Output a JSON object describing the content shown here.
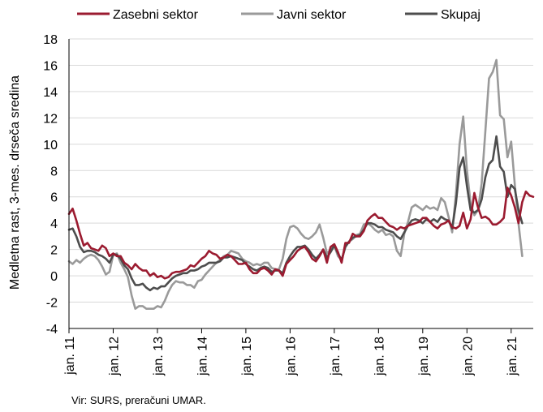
{
  "chart_data": {
    "type": "line",
    "ylabel": "Medletna rast, 3-mes. drseča sredina",
    "ylim": [
      -4,
      18
    ],
    "yticks": [
      -4,
      -2,
      0,
      2,
      4,
      6,
      8,
      10,
      12,
      14,
      16,
      18
    ],
    "x_start": "2011-01",
    "x_tick_labels": [
      "jan. 11",
      "jan. 12",
      "jan. 13",
      "jan. 14",
      "jan. 15",
      "jan. 16",
      "jan. 17",
      "jan. 18",
      "jan. 19",
      "jan. 20",
      "jan. 21"
    ],
    "grid": "horizontal",
    "legend": "top",
    "series": [
      {
        "name": "Zasebni sektor",
        "color": "#9b1b30",
        "values": [
          4.7,
          5.1,
          4.2,
          3.2,
          2.3,
          2.5,
          2.1,
          2.0,
          1.9,
          2.3,
          2.1,
          1.5,
          1.7,
          1.5,
          1.5,
          1.0,
          0.8,
          0.5,
          0.9,
          0.6,
          0.4,
          0.4,
          0.0,
          0.2,
          -0.1,
          0.0,
          -0.2,
          -0.1,
          0.2,
          0.3,
          0.3,
          0.4,
          0.5,
          0.8,
          0.7,
          1.0,
          1.3,
          1.5,
          1.9,
          1.7,
          1.6,
          1.3,
          1.4,
          1.6,
          1.5,
          1.2,
          0.9,
          0.9,
          1.0,
          0.5,
          0.2,
          0.2,
          0.5,
          0.6,
          0.4,
          0.1,
          0.5,
          0.4,
          0.0,
          0.9,
          1.2,
          1.5,
          1.9,
          2.1,
          2.2,
          1.8,
          1.3,
          1.1,
          1.5,
          2.0,
          1.0,
          2.2,
          2.4,
          1.8,
          1.0,
          2.5,
          2.5,
          3.2,
          3.0,
          3.0,
          3.4,
          4.2,
          4.5,
          4.7,
          4.4,
          4.4,
          4.1,
          3.8,
          3.7,
          3.5,
          3.7,
          3.6,
          3.8,
          3.9,
          4.0,
          4.1,
          4.4,
          4.4,
          4.1,
          3.8,
          3.6,
          3.9,
          4.0,
          4.2,
          3.7,
          3.6,
          3.8,
          4.8,
          3.6,
          4.3,
          6.3,
          5.2,
          4.4,
          4.5,
          4.3,
          3.9,
          3.9,
          4.1,
          4.4,
          6.7,
          6.1,
          5.2,
          4.0,
          5.6,
          6.4,
          6.1,
          6.0
        ]
      },
      {
        "name": "Javni sektor",
        "color": "#9a9a9a",
        "values": [
          1.1,
          0.9,
          1.2,
          1.0,
          1.3,
          1.5,
          1.6,
          1.5,
          1.2,
          0.7,
          0.1,
          0.3,
          1.6,
          1.7,
          1.0,
          0.5,
          -0.1,
          -1.5,
          -2.5,
          -2.3,
          -2.3,
          -2.5,
          -2.5,
          -2.5,
          -2.3,
          -2.4,
          -1.9,
          -1.2,
          -0.7,
          -0.4,
          -0.5,
          -0.5,
          -0.7,
          -0.7,
          -0.9,
          -0.4,
          -0.3,
          0.1,
          0.4,
          0.7,
          1.0,
          1.2,
          1.5,
          1.6,
          1.9,
          1.8,
          1.7,
          1.3,
          1.1,
          1.0,
          0.8,
          0.9,
          0.8,
          1.0,
          1.0,
          0.6,
          0.5,
          0.5,
          1.3,
          2.8,
          3.7,
          3.8,
          3.6,
          3.2,
          2.9,
          2.8,
          3.0,
          3.3,
          3.9,
          2.9,
          1.7,
          2.0,
          2.3,
          1.5,
          1.2,
          2.2,
          2.6,
          2.8,
          3.1,
          3.2,
          3.9,
          4.0,
          3.8,
          3.5,
          3.3,
          3.5,
          3.1,
          3.2,
          3.0,
          1.9,
          1.5,
          3.2,
          4.1,
          5.2,
          5.4,
          5.2,
          5.0,
          5.3,
          5.1,
          5.2,
          5.0,
          5.9,
          5.6,
          4.5,
          3.3,
          6.2,
          10.0,
          12.1,
          8.0,
          5.5,
          4.6,
          5.0,
          7.0,
          11.0,
          15.0,
          15.5,
          16.4,
          12.2,
          11.9,
          9.0,
          10.2,
          6.9,
          4.0,
          1.5
        ]
      },
      {
        "name": "Skupaj",
        "color": "#4d4d4d",
        "values": [
          3.5,
          3.6,
          3.0,
          2.2,
          1.8,
          1.9,
          1.9,
          1.8,
          1.6,
          1.5,
          1.3,
          1.0,
          1.6,
          1.6,
          1.3,
          0.8,
          0.5,
          -0.2,
          -0.7,
          -0.7,
          -0.6,
          -0.9,
          -1.1,
          -0.9,
          -1.0,
          -0.8,
          -0.8,
          -0.5,
          -0.2,
          0.0,
          0.1,
          0.2,
          0.2,
          0.4,
          0.4,
          0.5,
          0.7,
          0.8,
          1.0,
          1.0,
          1.0,
          1.1,
          1.4,
          1.4,
          1.5,
          1.4,
          1.3,
          1.2,
          0.9,
          0.7,
          0.5,
          0.4,
          0.6,
          0.7,
          0.6,
          0.3,
          0.4,
          0.4,
          0.2,
          1.0,
          1.5,
          1.9,
          2.2,
          2.2,
          2.3,
          2.0,
          1.6,
          1.3,
          1.6,
          2.0,
          1.4,
          1.8,
          2.3,
          1.7,
          1.2,
          2.2,
          2.6,
          2.9,
          3.0,
          3.1,
          3.5,
          4.0,
          4.0,
          3.9,
          3.7,
          3.7,
          3.5,
          3.4,
          3.3,
          3.0,
          2.8,
          3.3,
          3.8,
          4.2,
          4.3,
          4.2,
          4.0,
          4.3,
          4.1,
          4.3,
          4.1,
          4.5,
          4.3,
          4.2,
          3.6,
          5.5,
          8.2,
          9.0,
          6.8,
          5.0,
          4.8,
          5.0,
          5.8,
          7.5,
          8.5,
          8.8,
          10.6,
          8.3,
          7.9,
          6.0,
          6.9,
          6.6,
          5.0,
          4.0
        ]
      }
    ]
  },
  "source": "Vir: SURS, preračuni UMAR."
}
